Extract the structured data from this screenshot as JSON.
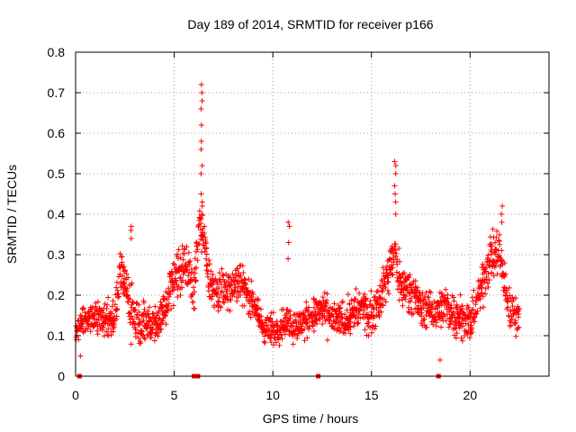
{
  "chart_data": {
    "type": "scatter",
    "title": "Day 189 of 2014, SRMTID for receiver p166",
    "xlabel": "GPS time / hours",
    "ylabel": "SRMTID / TECUs",
    "xlim": [
      0,
      24
    ],
    "ylim": [
      0,
      0.8
    ],
    "xticks": [
      0,
      5,
      10,
      15,
      20
    ],
    "xtick_labels": [
      "0",
      "5",
      "10",
      "15",
      "20"
    ],
    "yticks": [
      0,
      0.1,
      0.2,
      0.3,
      0.4,
      0.5,
      0.6,
      0.7,
      0.8
    ],
    "ytick_labels": [
      "0",
      "0.1",
      "0.2",
      "0.3",
      "0.4",
      "0.5",
      "0.6",
      "0.7",
      "0.8"
    ],
    "grid": true,
    "marker": "+",
    "color": "#ff0000",
    "series": [
      {
        "name": "SRMTID",
        "approx_envelope": {
          "x": [
            0.0,
            0.5,
            1.0,
            1.5,
            2.0,
            2.3,
            2.8,
            3.3,
            4.0,
            4.5,
            5.0,
            5.5,
            6.0,
            6.3,
            6.5,
            6.8,
            7.2,
            8.0,
            8.5,
            9.0,
            9.5,
            10.0,
            10.5,
            10.8,
            11.0,
            11.5,
            12.0,
            12.5,
            13.0,
            13.5,
            14.0,
            14.5,
            15.0,
            15.5,
            16.0,
            16.2,
            16.5,
            17.0,
            17.5,
            18.0,
            18.5,
            19.0,
            19.5,
            20.0,
            20.5,
            21.0,
            21.5,
            22.0,
            22.5
          ],
          "median": [
            0.11,
            0.14,
            0.15,
            0.14,
            0.15,
            0.27,
            0.16,
            0.13,
            0.13,
            0.16,
            0.25,
            0.28,
            0.22,
            0.38,
            0.33,
            0.23,
            0.2,
            0.23,
            0.23,
            0.18,
            0.12,
            0.11,
            0.13,
            0.14,
            0.12,
            0.13,
            0.15,
            0.16,
            0.14,
            0.14,
            0.15,
            0.17,
            0.15,
            0.2,
            0.28,
            0.3,
            0.22,
            0.22,
            0.17,
            0.16,
            0.17,
            0.16,
            0.15,
            0.13,
            0.2,
            0.3,
            0.3,
            0.16,
            0.15
          ],
          "spread": [
            0.03,
            0.04,
            0.04,
            0.05,
            0.05,
            0.05,
            0.07,
            0.05,
            0.05,
            0.06,
            0.07,
            0.06,
            0.06,
            0.05,
            0.06,
            0.05,
            0.05,
            0.05,
            0.05,
            0.04,
            0.04,
            0.04,
            0.04,
            0.04,
            0.04,
            0.04,
            0.04,
            0.05,
            0.04,
            0.04,
            0.05,
            0.05,
            0.05,
            0.05,
            0.06,
            0.06,
            0.05,
            0.05,
            0.05,
            0.04,
            0.05,
            0.05,
            0.05,
            0.04,
            0.06,
            0.06,
            0.06,
            0.05,
            0.04
          ]
        },
        "spikes": [
          {
            "x": 6.4,
            "values": [
              0.72,
              0.7,
              0.68,
              0.66,
              0.62,
              0.58,
              0.56,
              0.52,
              0.5,
              0.45,
              0.43,
              0.42,
              0.4
            ]
          },
          {
            "x": 2.8,
            "values": [
              0.37,
              0.36,
              0.34
            ]
          },
          {
            "x": 10.8,
            "values": [
              0.38,
              0.37,
              0.33,
              0.29
            ]
          },
          {
            "x": 16.2,
            "values": [
              0.53,
              0.52,
              0.5,
              0.47,
              0.45,
              0.43,
              0.4
            ]
          },
          {
            "x": 21.6,
            "values": [
              0.42,
              0.4,
              0.38
            ]
          },
          {
            "x": 0.25,
            "values": [
              0.05
            ]
          },
          {
            "x": 18.5,
            "values": [
              0.04
            ]
          }
        ],
        "zero_values_x": [
          0.2,
          6.0,
          6.2,
          12.3,
          18.4
        ]
      }
    ]
  }
}
